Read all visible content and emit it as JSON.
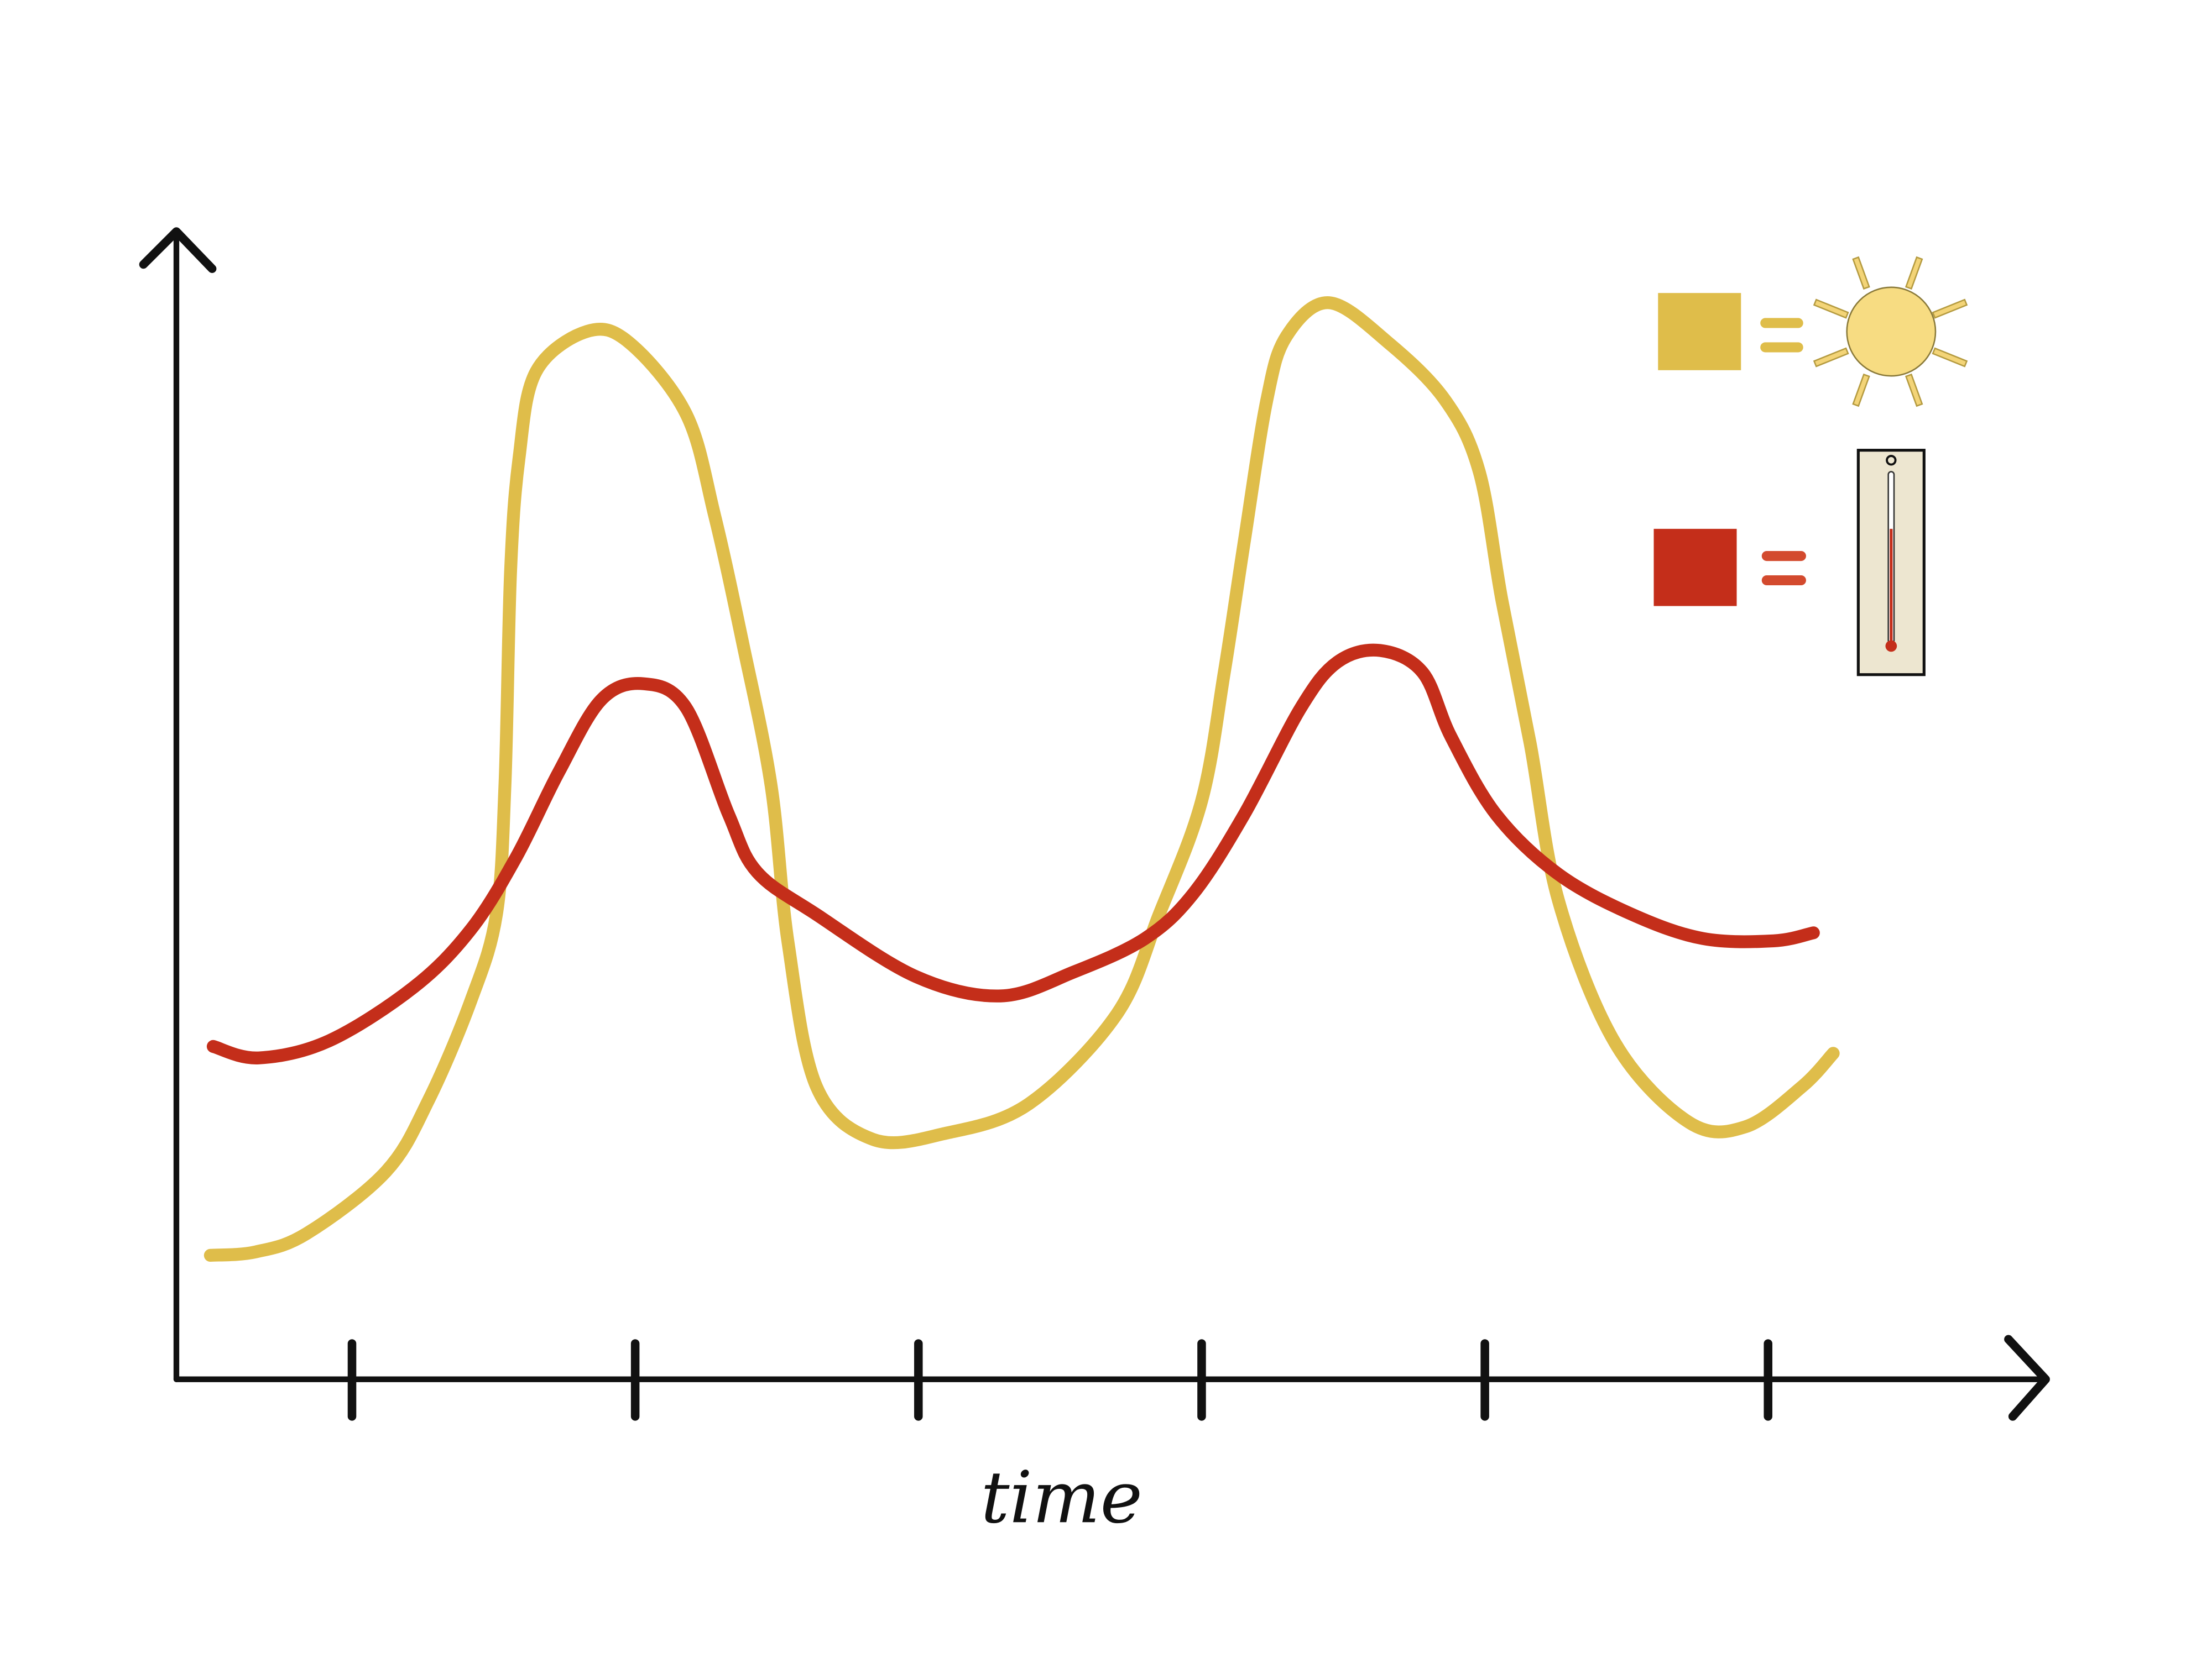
{
  "chart_data": {
    "type": "line",
    "x_label": "time",
    "xlim": [
      0.38,
      6.98
    ],
    "xticks": [
      1,
      2,
      3,
      4,
      5,
      6
    ],
    "ylim": [
      0,
      100
    ],
    "series": [
      {
        "color": "#dfbd4a",
        "x": [
          0.5,
          0.66,
          0.84,
          1.12,
          1.27,
          1.42,
          1.51,
          1.54,
          1.56,
          1.59,
          1.65,
          1.83,
          1.98,
          2.18,
          2.28,
          2.38,
          2.48,
          2.54,
          2.64,
          2.84,
          3.09,
          3.39,
          3.7,
          3.85,
          4.0,
          4.08,
          4.15,
          4.23,
          4.3,
          4.45,
          4.66,
          4.86,
          4.98,
          5.06,
          5.16,
          5.26,
          5.46,
          5.72,
          5.92,
          6.12,
          6.23
        ],
        "values": [
          10.8,
          11.1,
          12.7,
          18.1,
          24.3,
          33.0,
          40.5,
          51.7,
          70.4,
          80.3,
          87.8,
          91.3,
          90.3,
          84.1,
          75.3,
          64.1,
          51.7,
          38.0,
          25.5,
          20.9,
          21.4,
          24.0,
          31.8,
          40.5,
          50.4,
          61.6,
          72.9,
          85.3,
          90.9,
          93.8,
          90.3,
          85.3,
          79.1,
          67.9,
          55.4,
          41.7,
          29.3,
          22.4,
          22.0,
          25.5,
          28.4
        ]
      },
      {
        "color": "#c42e1a",
        "x": [
          0.51,
          0.67,
          0.92,
          1.22,
          1.42,
          1.58,
          1.73,
          1.88,
          2.03,
          2.18,
          2.33,
          2.43,
          2.64,
          2.99,
          3.29,
          3.55,
          3.8,
          3.97,
          4.15,
          4.35,
          4.48,
          4.63,
          4.78,
          4.88,
          5.04,
          5.26,
          5.52,
          5.77,
          6.02,
          6.16
        ],
        "values": [
          29.0,
          28.0,
          29.5,
          34.2,
          39.2,
          45.5,
          52.9,
          59.2,
          60.6,
          58.5,
          49.2,
          44.2,
          40.5,
          35.1,
          33.4,
          35.5,
          38.4,
          42.3,
          49.2,
          58.5,
          62.5,
          63.5,
          61.6,
          56.0,
          49.2,
          44.0,
          40.5,
          38.4,
          38.2,
          38.9
        ]
      }
    ]
  }
}
